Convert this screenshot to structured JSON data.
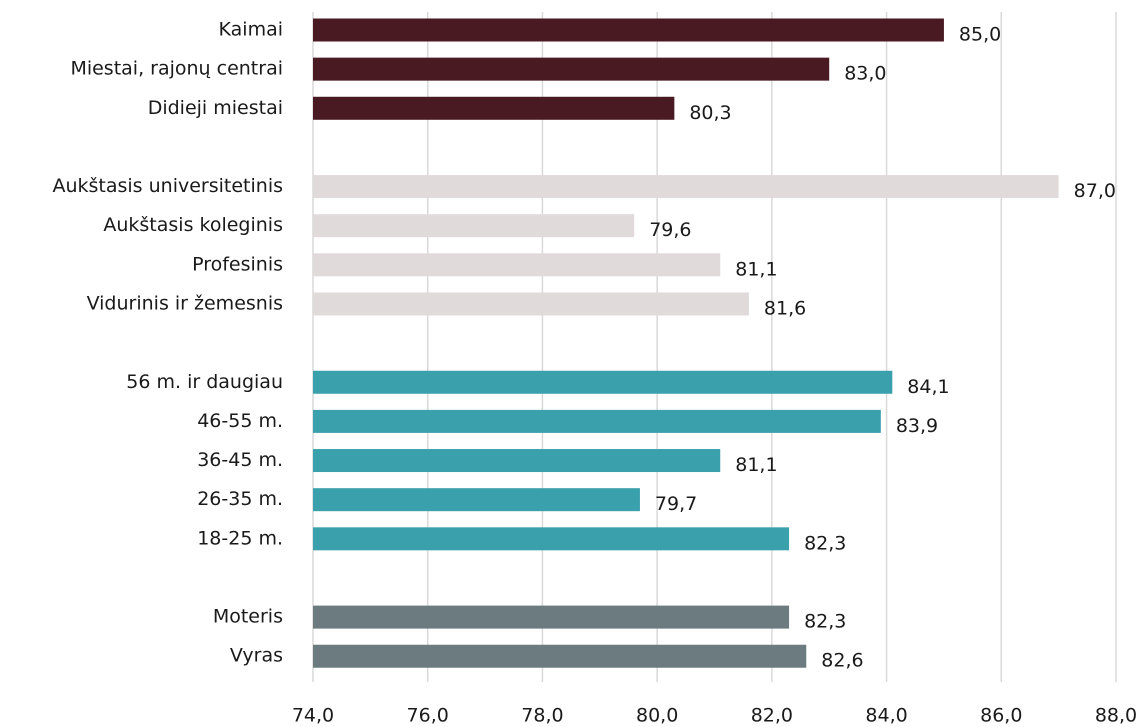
{
  "chart_data": {
    "type": "bar",
    "orientation": "horizontal",
    "categories": [
      "Kaimai",
      "Miestai, rajonų centrai",
      "Didieji miestai",
      null,
      "Aukštasis universitetinis",
      "Aukštasis koleginis",
      "Profesinis",
      "Vidurinis ir žemesnis",
      null,
      "56 m. ir daugiau",
      "46-55 m.",
      "36-45 m.",
      "26-35 m.",
      "18-25 m.",
      null,
      "Moteris",
      "Vyras"
    ],
    "values": [
      85.0,
      83.0,
      80.3,
      null,
      87.0,
      79.6,
      81.1,
      81.6,
      null,
      84.1,
      83.9,
      81.1,
      79.7,
      82.3,
      null,
      82.3,
      82.6
    ],
    "value_labels": [
      "85,0",
      "83,0",
      "80,3",
      null,
      "87,0",
      "79,6",
      "81,1",
      "81,6",
      null,
      "84,1",
      "83,9",
      "81,1",
      "79,7",
      "82,3",
      null,
      "82,3",
      "82,6"
    ],
    "colors": [
      "#4a1a23",
      "#4a1a23",
      "#4a1a23",
      null,
      "#e0dadb",
      "#e0dadb",
      "#e0dadb",
      "#e0dadb",
      null,
      "#3aa0ac",
      "#3aa0ac",
      "#3aa0ac",
      "#3aa0ac",
      "#3aa0ac",
      null,
      "#6b7b80",
      "#6b7b80"
    ],
    "xlim": [
      74,
      88
    ],
    "xticks": [
      {
        "value": 74,
        "label": "74,0"
      },
      {
        "value": 76,
        "label": "76,0"
      },
      {
        "value": 78,
        "label": "78,0"
      },
      {
        "value": 80,
        "label": "80,0"
      },
      {
        "value": 82,
        "label": "82,0"
      },
      {
        "value": 84,
        "label": "84,0"
      },
      {
        "value": 86,
        "label": "86,0"
      },
      {
        "value": 88,
        "label": "88,0"
      }
    ],
    "grid": true
  }
}
